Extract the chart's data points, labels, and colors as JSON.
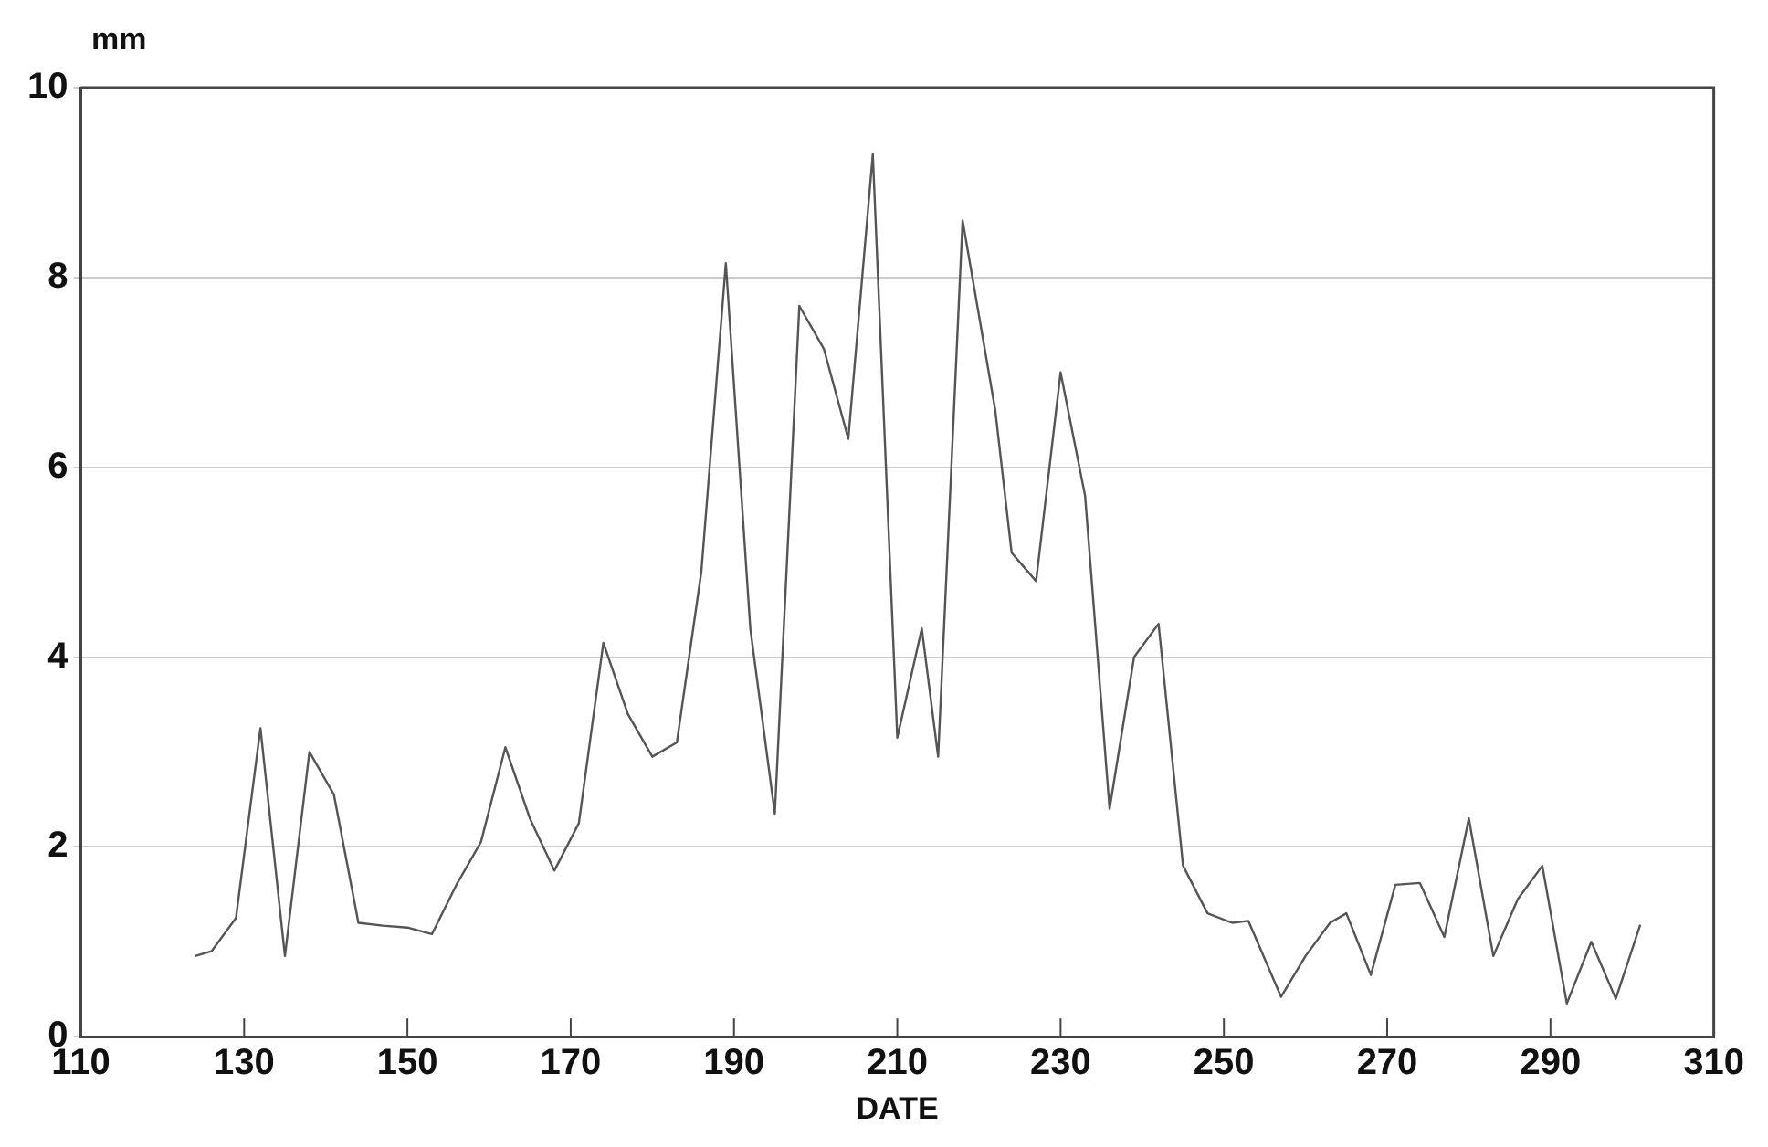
{
  "chart_data": {
    "type": "line",
    "xlabel": "DATE",
    "ylabel": "mm",
    "x": [
      124,
      126,
      129,
      132,
      135,
      138,
      141,
      144,
      147,
      150,
      153,
      156,
      159,
      162,
      165,
      168,
      171,
      174,
      177,
      180,
      183,
      186,
      189,
      192,
      195,
      198,
      201,
      204,
      207,
      210,
      213,
      215,
      218,
      222,
      224,
      227,
      230,
      233,
      236,
      239,
      242,
      245,
      248,
      251,
      253,
      257,
      260,
      263,
      265,
      268,
      271,
      274,
      277,
      280,
      283,
      286,
      289,
      292,
      295,
      298,
      301
    ],
    "series": [
      {
        "color": "#555555",
        "values": [
          0.85,
          0.9,
          1.25,
          3.25,
          0.85,
          3.0,
          2.55,
          1.2,
          1.17,
          1.15,
          1.08,
          1.6,
          2.05,
          3.05,
          2.3,
          1.75,
          2.25,
          4.15,
          3.4,
          2.95,
          3.1,
          4.9,
          8.15,
          4.3,
          2.35,
          7.7,
          7.25,
          6.3,
          9.3,
          3.15,
          4.3,
          2.95,
          8.6,
          6.6,
          5.1,
          4.8,
          7.0,
          5.7,
          2.4,
          4.0,
          4.35,
          1.8,
          1.3,
          1.2,
          1.22,
          0.42,
          0.85,
          1.2,
          1.3,
          0.65,
          1.6,
          1.62,
          1.05,
          2.3,
          0.85,
          1.45,
          1.8,
          0.35,
          1.0,
          0.4,
          1.18
        ]
      }
    ],
    "xlim": [
      110,
      310
    ],
    "xticks": [
      110,
      130,
      150,
      170,
      190,
      210,
      230,
      250,
      270,
      290,
      310
    ],
    "ylim": [
      0,
      10
    ],
    "yticks": [
      0,
      2,
      4,
      6,
      8,
      10
    ],
    "grid": "y",
    "legend": false,
    "marker": "none",
    "line_style": "solid"
  }
}
